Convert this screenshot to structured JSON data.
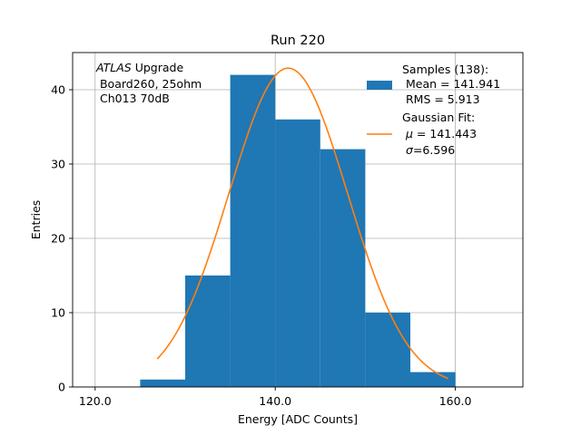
{
  "chart_data": {
    "type": "bar",
    "title": "Run 220",
    "xlabel": "Energy [ADC Counts]",
    "ylabel": "Entries",
    "xlim": [
      117.5,
      167.5
    ],
    "ylim": [
      0,
      45
    ],
    "grid": true,
    "xticks": [
      120,
      140,
      160
    ],
    "xtick_labels": [
      "120.0",
      "140.0",
      "160.0"
    ],
    "yticks": [
      0,
      10,
      20,
      30,
      40
    ],
    "ytick_labels": [
      "0",
      "10",
      "20",
      "30",
      "40"
    ],
    "bins": [
      {
        "x0": 125,
        "x1": 130,
        "count": 1
      },
      {
        "x0": 130,
        "x1": 135,
        "count": 15
      },
      {
        "x0": 135,
        "x1": 140,
        "count": 42
      },
      {
        "x0": 140,
        "x1": 145,
        "count": 36
      },
      {
        "x0": 145,
        "x1": 150,
        "count": 32
      },
      {
        "x0": 150,
        "x1": 155,
        "count": 10
      },
      {
        "x0": 155,
        "x1": 160,
        "count": 2
      }
    ],
    "fit": {
      "type": "gaussian",
      "mu": 141.443,
      "sigma": 6.596,
      "amplitude": 42.9,
      "x_range": [
        126.9,
        159.2
      ]
    },
    "bar_color": "#1f77b4",
    "fit_color": "#ff7f0e",
    "grid_color": "#b0b0b0",
    "annotation": {
      "italic": "ATLAS",
      "line1_rest": " Upgrade",
      "line2": " Board260, 25ohm",
      "line3": " Ch013 70dB"
    },
    "legend": {
      "placement": "upper right",
      "hist_entry": [
        "Samples (138):",
        " Mean = 141.941",
        " RMS = 5.913"
      ],
      "fit_entry_title": "Gaussian Fit:",
      "fit_mu_symbol": "μ",
      "fit_mu_value": " = 141.443",
      "fit_sigma_symbol": "σ",
      "fit_sigma_value": "=6.596"
    }
  }
}
